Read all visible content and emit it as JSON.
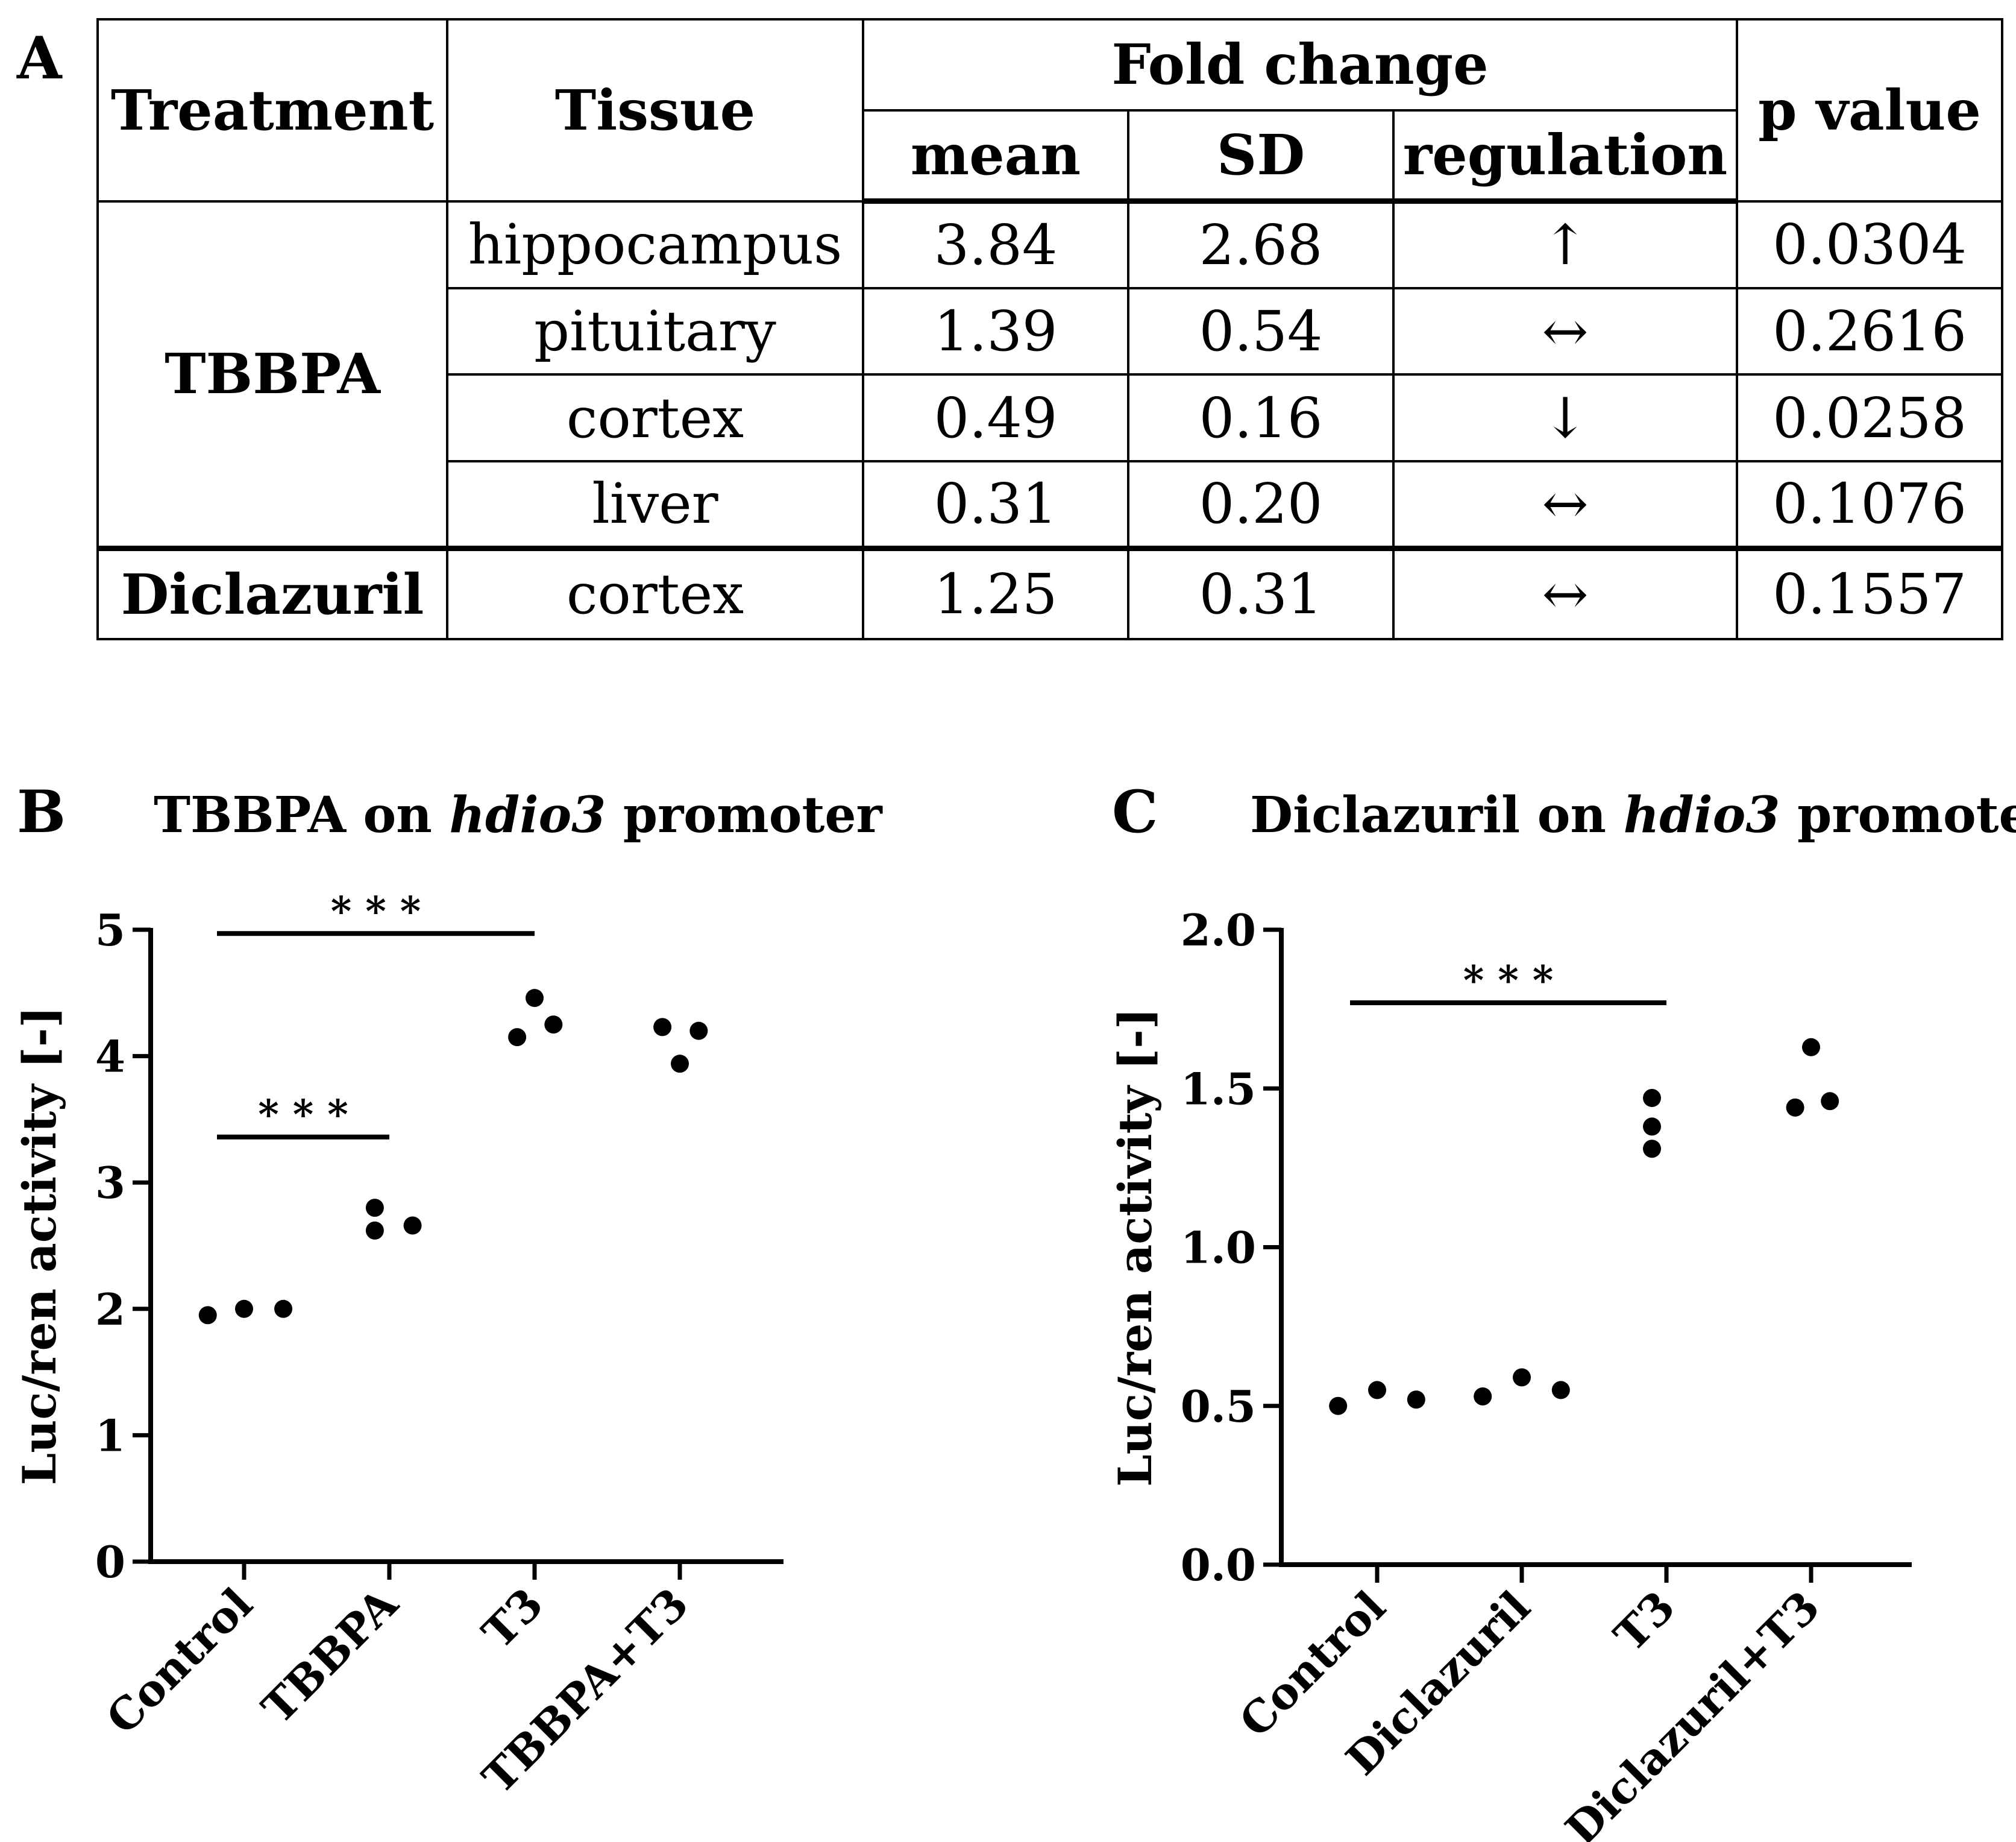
{
  "panel_labels": {
    "a": "A",
    "b": "B",
    "c": "C"
  },
  "table": {
    "headers": {
      "treatment": "Treatment",
      "tissue": "Tissue",
      "fold_change": "Fold change",
      "mean": "mean",
      "sd": "SD",
      "regulation": "regulation",
      "p_value": "p value"
    },
    "group1": "TBBPA",
    "group2": "Diclazuril",
    "rows": [
      {
        "tissue": "hippocampus",
        "mean": "3.84",
        "sd": "2.68",
        "regulation": "↑",
        "p": "0.0304"
      },
      {
        "tissue": "pituitary",
        "mean": "1.39",
        "sd": "0.54",
        "regulation": "↔",
        "p": "0.2616"
      },
      {
        "tissue": "cortex",
        "mean": "0.49",
        "sd": "0.16",
        "regulation": "↓",
        "p": "0.0258"
      },
      {
        "tissue": "liver",
        "mean": "0.31",
        "sd": "0.20",
        "regulation": "↔",
        "p": "0.1076"
      },
      {
        "tissue": "cortex",
        "mean": "1.25",
        "sd": "0.31",
        "regulation": "↔",
        "p": "0.1557"
      }
    ]
  },
  "chart_data": [
    {
      "type": "scatter",
      "title_parts": [
        "TBBPA on ",
        "hdio3",
        " promoter"
      ],
      "ylabel": "Luc/ren activity [-]",
      "xlabel": "",
      "ylim": [
        0,
        5
      ],
      "yticks": [
        "0",
        "1",
        "2",
        "3",
        "4",
        "5"
      ],
      "categories": [
        "Control",
        "TBBPA",
        "T3",
        "TBBPA+T3"
      ],
      "points": [
        [
          {
            "dx": -0.25,
            "y": 1.95
          },
          {
            "dx": 0.0,
            "y": 2.0
          },
          {
            "dx": 0.27,
            "y": 2.0
          }
        ],
        [
          {
            "dx": -0.1,
            "y": 2.8
          },
          {
            "dx": -0.1,
            "y": 2.62
          },
          {
            "dx": 0.16,
            "y": 2.66
          }
        ],
        [
          {
            "dx": -0.12,
            "y": 4.15
          },
          {
            "dx": 0.0,
            "y": 4.46
          },
          {
            "dx": 0.13,
            "y": 4.25
          }
        ],
        [
          {
            "dx": -0.12,
            "y": 4.23
          },
          {
            "dx": 0.0,
            "y": 3.94
          },
          {
            "dx": 0.13,
            "y": 4.2
          }
        ]
      ],
      "significance": [
        {
          "from": 0,
          "to": 2,
          "y": 4.97,
          "label": "* * *"
        },
        {
          "from": 0,
          "to": 1,
          "y": 3.36,
          "label": "* * *"
        }
      ]
    },
    {
      "type": "scatter",
      "title_parts": [
        "Diclazuril on ",
        "hdio3",
        " promoter"
      ],
      "ylabel": "Luc/ren activity [-]",
      "xlabel": "",
      "ylim": [
        0,
        2
      ],
      "yticks": [
        "0.0",
        "0.5",
        "1.0",
        "1.5",
        "2.0"
      ],
      "categories": [
        "Control",
        "Diclazuril",
        "T3",
        "Diclazuril+T3"
      ],
      "points": [
        [
          {
            "dx": -0.27,
            "y": 0.5
          },
          {
            "dx": 0.0,
            "y": 0.55
          },
          {
            "dx": 0.27,
            "y": 0.52
          }
        ],
        [
          {
            "dx": -0.27,
            "y": 0.53
          },
          {
            "dx": 0.0,
            "y": 0.59
          },
          {
            "dx": 0.27,
            "y": 0.55
          }
        ],
        [
          {
            "dx": -0.1,
            "y": 1.47
          },
          {
            "dx": -0.1,
            "y": 1.38
          },
          {
            "dx": -0.1,
            "y": 1.31
          }
        ],
        [
          {
            "dx": -0.11,
            "y": 1.44
          },
          {
            "dx": 0.0,
            "y": 1.63
          },
          {
            "dx": 0.13,
            "y": 1.46
          }
        ]
      ],
      "significance": [
        {
          "from": 0,
          "to": 2,
          "y": 1.77,
          "label": "* * *"
        }
      ]
    }
  ]
}
